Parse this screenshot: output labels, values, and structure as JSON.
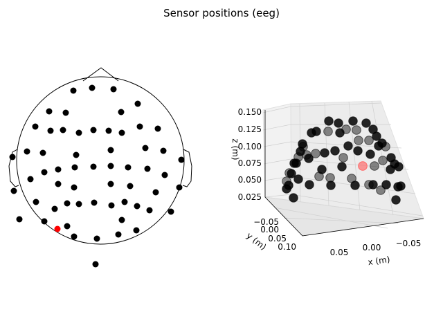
{
  "chart_data": [
    {
      "type": "scatter",
      "title": "Sensor positions (eeg)",
      "view": "topomap-2d",
      "highlight_color": "#ff0000",
      "sensor_color": "#000000",
      "grid": false
    },
    {
      "type": "scatter",
      "view": "3d",
      "xlabel": "x (m)",
      "ylabel": "y (m)",
      "zlabel": "z (m)",
      "x_ticks": [
        "0.05",
        "0.00",
        "−0.05"
      ],
      "y_ticks": [
        "−0.05",
        "0.00",
        "0.05",
        "0.10"
      ],
      "z_ticks": [
        "0.025",
        "0.050",
        "0.075",
        "0.100",
        "0.125",
        "0.150"
      ],
      "xlim": [
        0.09,
        -0.09
      ],
      "ylim": [
        -0.1,
        0.12
      ],
      "zlim": [
        0.02,
        0.155
      ],
      "grid": true,
      "highlight_color": "#ff6666",
      "sensor_color": "#000000"
    }
  ]
}
